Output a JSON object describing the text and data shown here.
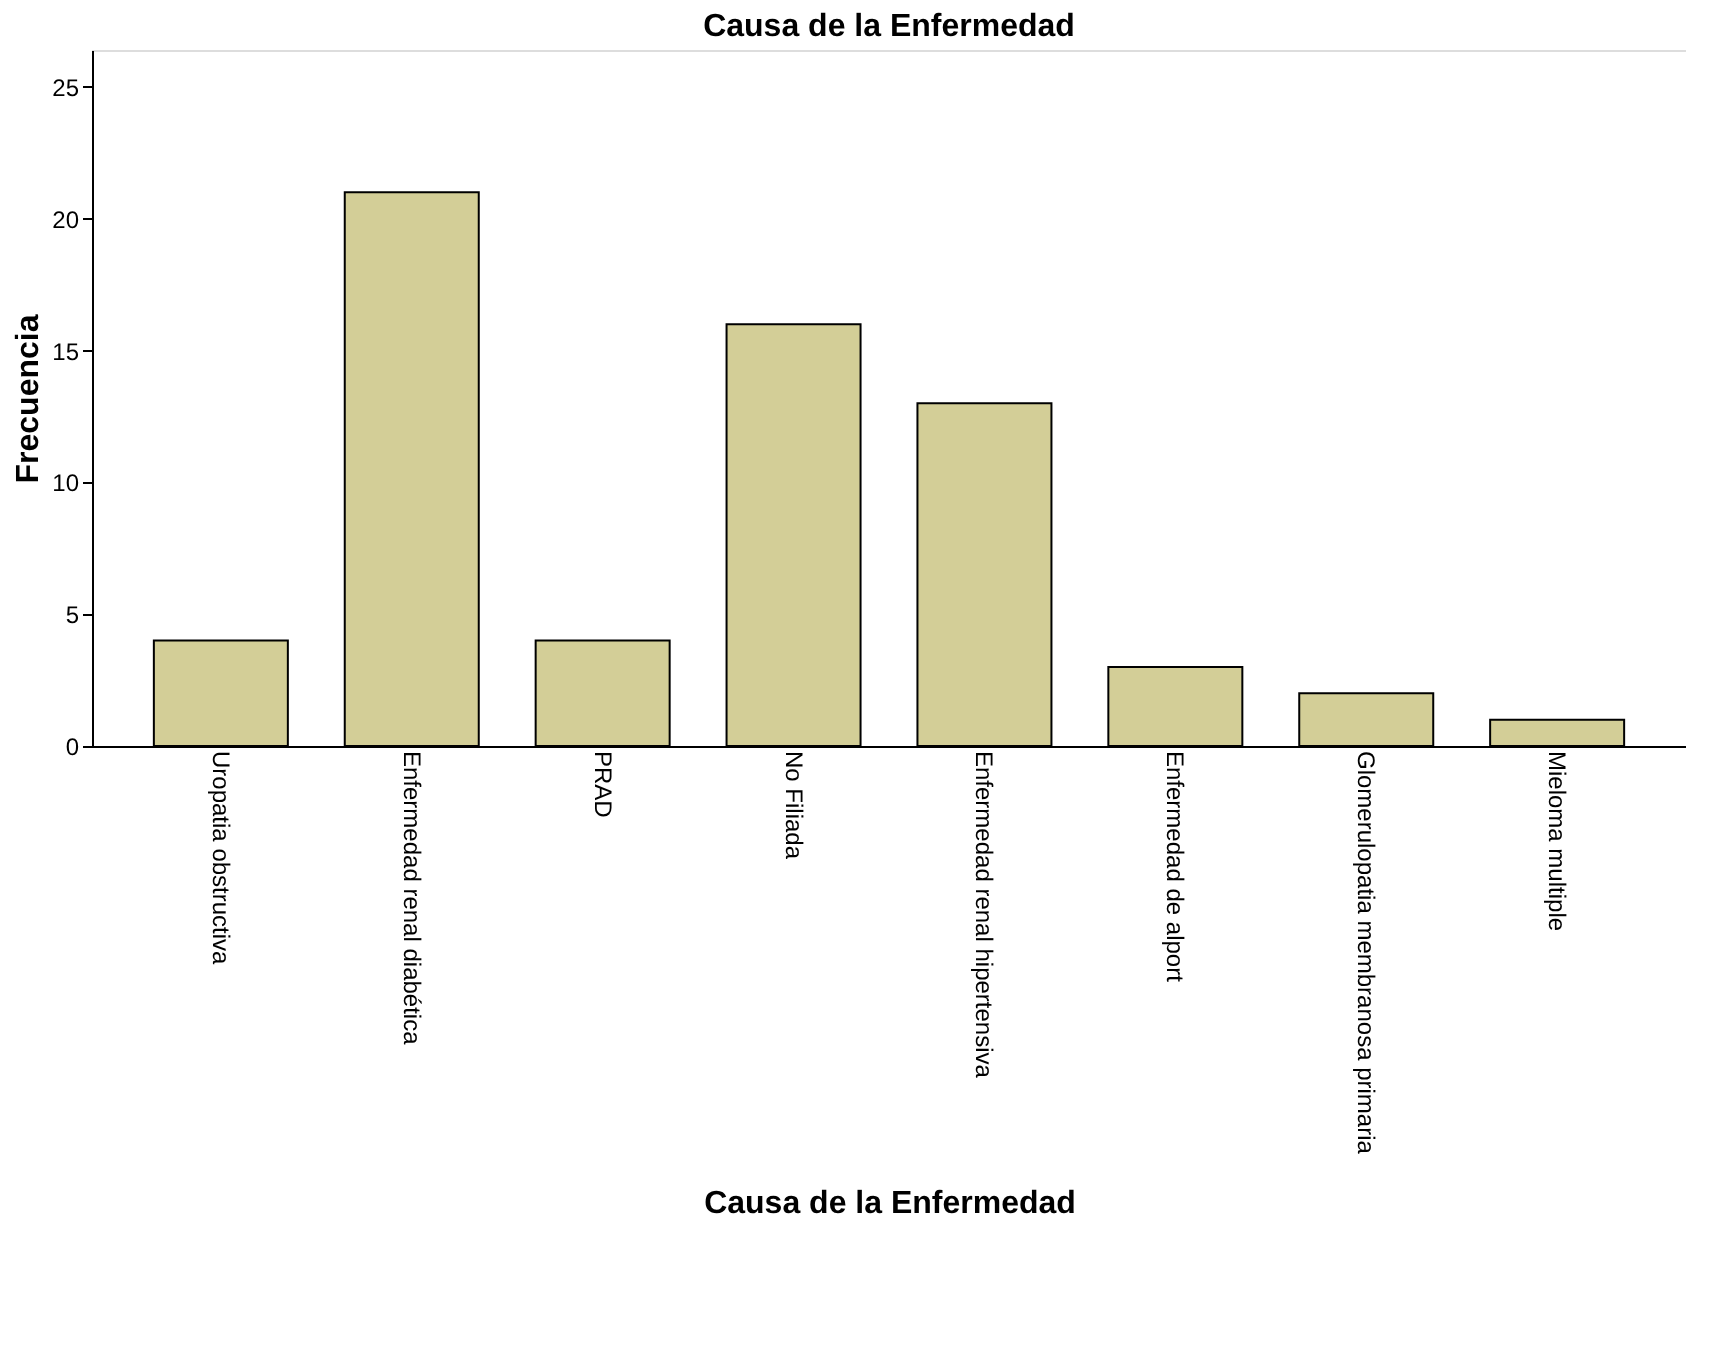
{
  "chart_data": {
    "type": "bar",
    "title": "Causa de la Enfermedad",
    "xlabel": "Causa de la Enfermedad",
    "ylabel": "Frecuencia",
    "categories": [
      "Uropatia obstructiva",
      "Enfermedad renal diabética",
      "PRAD",
      "No Filiada",
      "Enfermedad renal hipertensiva",
      "Enfermedad de alport",
      "Glomerulopatia membranosa primaria",
      "Mieloma multiple"
    ],
    "values": [
      4,
      21,
      4,
      16,
      13,
      3,
      2,
      1
    ],
    "color": "#d3ce97",
    "ylim": [
      0,
      26.4
    ],
    "yticks": [
      0,
      5,
      10,
      15,
      20,
      25
    ],
    "grid": false
  }
}
